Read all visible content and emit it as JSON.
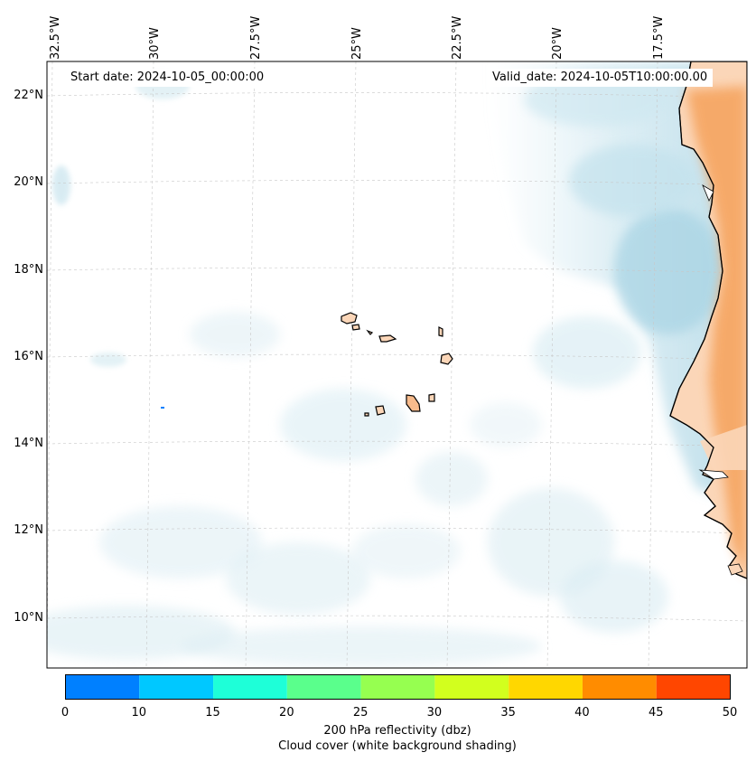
{
  "map": {
    "start_date": "Start date: 2024-10-05_00:00:00",
    "valid_date": "Valid_date: 2024-10-05T10:00:00.00",
    "lon_labels": [
      "32.5°W",
      "30°W",
      "27.5°W",
      "25°W",
      "22.5°W",
      "20°W",
      "17.5°W"
    ],
    "lat_labels": [
      "22°N",
      "20°N",
      "18°N",
      "16°N",
      "14°N",
      "12°N",
      "10°N"
    ],
    "land_color": "#fbd6b8",
    "warm_color": "#f5a25c",
    "cloud_color": "#bfe0ea"
  },
  "colorbar": {
    "ticks": [
      "0",
      "10",
      "15",
      "20",
      "25",
      "30",
      "35",
      "40",
      "45",
      "50"
    ],
    "colors": [
      "#0080ff",
      "#00c8ff",
      "#1effd8",
      "#5aff8c",
      "#96ff50",
      "#d2ff1e",
      "#ffd700",
      "#ff8c00",
      "#ff4600"
    ],
    "label_line1": "200 hPa reflectivity (dbz)",
    "label_line2": "Cloud cover (white background shading)"
  }
}
